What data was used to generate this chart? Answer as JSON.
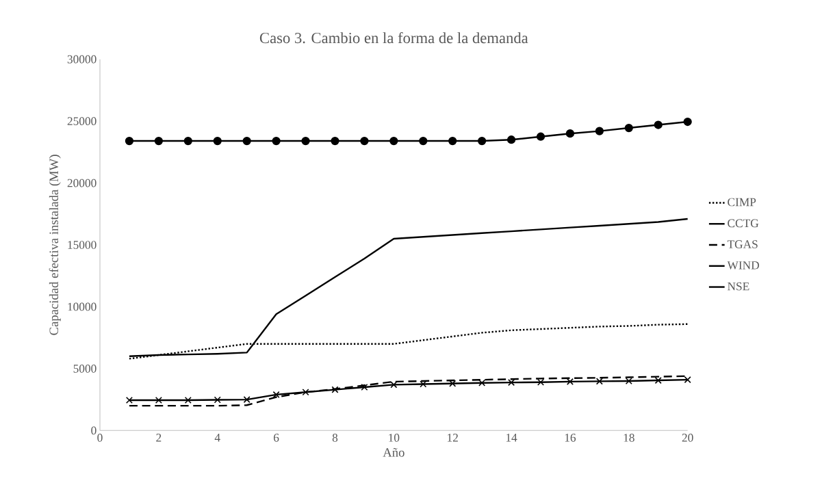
{
  "chart_data": {
    "type": "line",
    "title": "Caso 3. Cambio en la forma de la demanda",
    "xlabel": "Año",
    "ylabel": "Capacidad efectiva instalada (MW)",
    "x": [
      1,
      2,
      3,
      4,
      5,
      6,
      7,
      8,
      9,
      10,
      11,
      12,
      13,
      14,
      15,
      16,
      17,
      18,
      19,
      20
    ],
    "xlim": [
      0,
      20
    ],
    "xticks": [
      0,
      2,
      4,
      6,
      8,
      10,
      12,
      14,
      16,
      18,
      20
    ],
    "ylim": [
      0,
      30000
    ],
    "yticks": [
      0,
      5000,
      10000,
      15000,
      20000,
      25000,
      30000
    ],
    "grid": false,
    "legend": "right",
    "series": [
      {
        "name": "CIMP",
        "color": "#000000",
        "line_style": "dotted",
        "marker": "none",
        "values": [
          5800,
          6100,
          6400,
          6700,
          7000,
          7000,
          7000,
          7000,
          7000,
          7000,
          7300,
          7600,
          7900,
          8100,
          8200,
          8300,
          8400,
          8450,
          8550,
          8600
        ]
      },
      {
        "name": "CCTG",
        "color": "#000000",
        "line_style": "solid",
        "marker": "none",
        "values": [
          6000,
          6100,
          6150,
          6200,
          6300,
          9400,
          10900,
          12400,
          13900,
          15500,
          15650,
          15800,
          15950,
          16100,
          16250,
          16400,
          16550,
          16700,
          16850,
          17100
        ]
      },
      {
        "name": "TGAS",
        "color": "#000000",
        "line_style": "dashed",
        "marker": "none",
        "values": [
          2000,
          2000,
          2000,
          2000,
          2050,
          2700,
          3100,
          3350,
          3650,
          3950,
          4000,
          4050,
          4100,
          4150,
          4200,
          4230,
          4260,
          4300,
          4350,
          4400
        ]
      },
      {
        "name": "WIND",
        "color": "#000000",
        "line_style": "solid",
        "marker": "circle",
        "values": [
          23400,
          23400,
          23400,
          23400,
          23400,
          23400,
          23400,
          23400,
          23400,
          23400,
          23400,
          23400,
          23400,
          23500,
          23750,
          24000,
          24200,
          24450,
          24700,
          24950
        ]
      },
      {
        "name": "NSE",
        "color": "#000000",
        "line_style": "solid",
        "marker": "cross",
        "values": [
          2450,
          2450,
          2450,
          2480,
          2500,
          2900,
          3100,
          3300,
          3500,
          3700,
          3750,
          3800,
          3850,
          3880,
          3900,
          3950,
          3980,
          4000,
          4050,
          4100
        ]
      }
    ]
  }
}
